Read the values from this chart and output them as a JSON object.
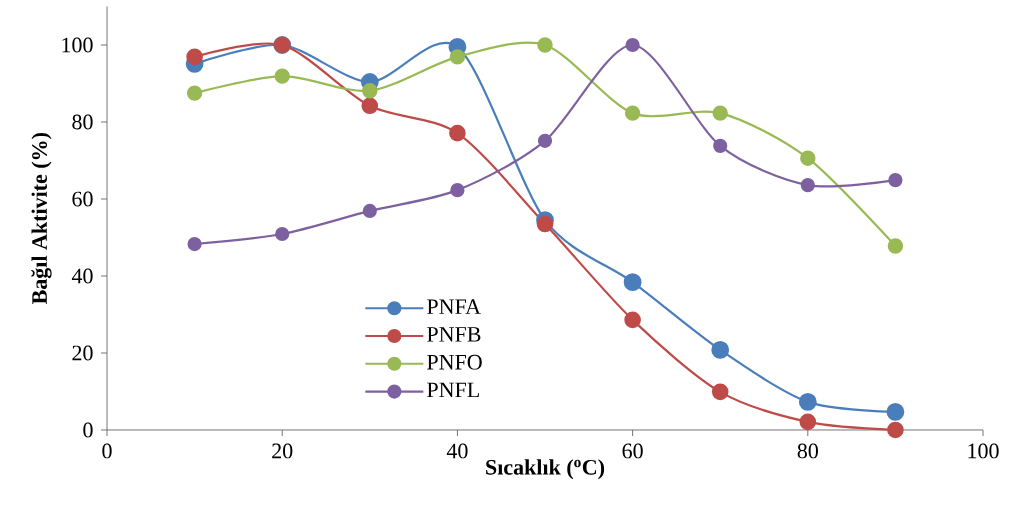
{
  "chart_data": {
    "type": "line",
    "xlabel": "Sıcaklık ($^{o}$C)",
    "ylabel": "Bağıl Aktivite (%)",
    "x": [
      10,
      20,
      30,
      40,
      50,
      60,
      70,
      80,
      90
    ],
    "xlim": [
      0,
      100
    ],
    "xticks": [
      0,
      20,
      40,
      60,
      80,
      100
    ],
    "ylim": [
      0,
      110
    ],
    "yticks": [
      0,
      20,
      40,
      60,
      80,
      100
    ],
    "grid": false,
    "legend": "bottom center",
    "marker": "circle",
    "line_style": "solid",
    "series": [
      {
        "name": "PNFA",
        "color": "#4a7ebb",
        "values": [
          95.1,
          100,
          90.4,
          99.5,
          54.5,
          38.4,
          20.8,
          7.3,
          4.7
        ]
      },
      {
        "name": "PNFB",
        "color": "#be4b48",
        "values": [
          96.9,
          100,
          84.2,
          77.1,
          53.5,
          28.6,
          9.9,
          2.1,
          0
        ]
      },
      {
        "name": "PNFO",
        "color": "#98b954",
        "values": [
          87.5,
          91.9,
          88.1,
          96.9,
          100,
          82.3,
          82.3,
          70.6,
          47.8
        ]
      },
      {
        "name": "PNFL",
        "color": "#7d60a0",
        "values": [
          48.3,
          50.9,
          56.9,
          62.3,
          75.1,
          100,
          73.8,
          63.6,
          64.9
        ]
      }
    ]
  }
}
